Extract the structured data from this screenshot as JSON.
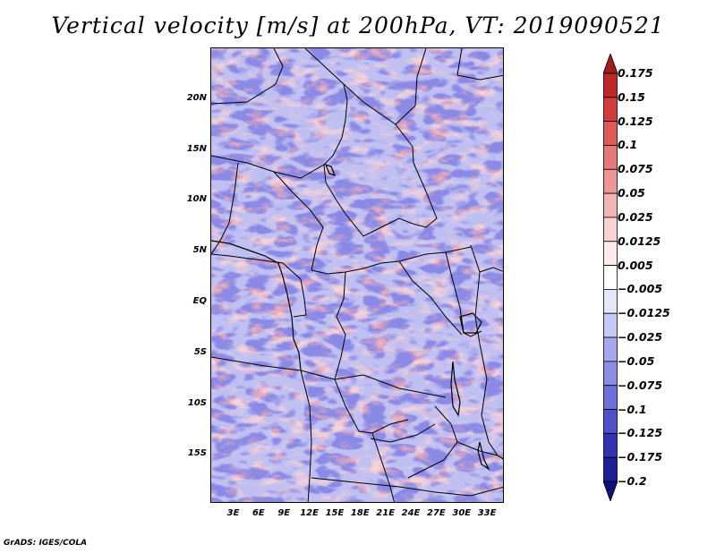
{
  "title": "Vertical velocity [m/s] at 200hPa, VT: 2019090521",
  "footer": "GrADS: IGES/COLA",
  "map": {
    "lat_labels": [
      "20N",
      "15N",
      "10N",
      "5N",
      "EQ",
      "5S",
      "10S",
      "15S"
    ],
    "lat_values": [
      20,
      15,
      10,
      5,
      0,
      -5,
      -10,
      -15
    ],
    "lon_labels": [
      "3E",
      "6E",
      "9E",
      "12E",
      "15E",
      "18E",
      "21E",
      "24E",
      "27E",
      "30E",
      "33E"
    ],
    "lon_values": [
      3,
      6,
      9,
      12,
      15,
      18,
      21,
      24,
      27,
      30,
      33
    ],
    "lat_range": [
      -20,
      25
    ],
    "lon_range": [
      0,
      35
    ]
  },
  "colorbar": {
    "labels": [
      "0.175",
      "0.15",
      "0.125",
      "0.1",
      "0.075",
      "0.05",
      "0.025",
      "0.0125",
      "0.005",
      "−0.005",
      "−0.0125",
      "−0.025",
      "−0.05",
      "−0.075",
      "−0.1",
      "−0.125",
      "−0.175",
      "−0.2"
    ],
    "colors": [
      "#a01e1e",
      "#c02828",
      "#d23c3c",
      "#e05a5a",
      "#e67878",
      "#ee9696",
      "#f4b4b4",
      "#f9d2d2",
      "#fdebeb",
      "#ffffff",
      "#e6e6fb",
      "#c8c8f4",
      "#a8a8ee",
      "#8c8ce6",
      "#6e6edc",
      "#5050cc",
      "#3232b4",
      "#1e1e96",
      "#10107a"
    ]
  }
}
